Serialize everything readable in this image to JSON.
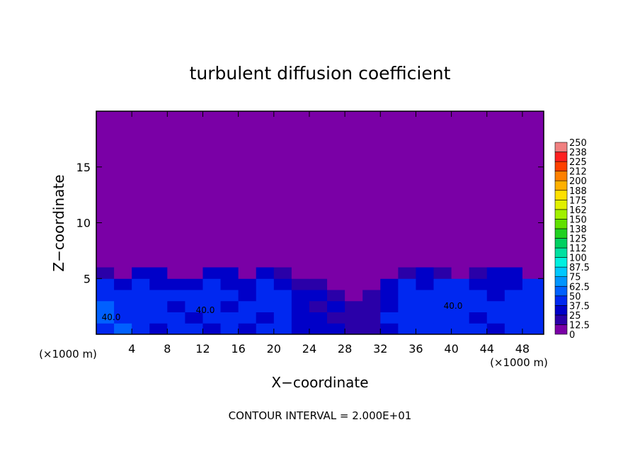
{
  "chart_data": {
    "type": "heatmap",
    "title": "turbulent diffusion coefficient",
    "x_label": "X−coordinate",
    "y_label": "Z−coordinate",
    "x_unit": "(×1000 m)",
    "footer": "CONTOUR INTERVAL = 2.000E+01",
    "annotations": [
      "40.0",
      "40.0",
      "40.0"
    ],
    "xlim": [
      0,
      50.4
    ],
    "ylim": [
      0,
      20
    ],
    "xticks": [
      4,
      8,
      12,
      16,
      20,
      24,
      28,
      32,
      36,
      40,
      44,
      48
    ],
    "yticks": [
      5,
      10,
      15
    ],
    "x_edges": [
      0,
      2,
      4,
      6,
      8,
      10,
      12,
      14,
      16,
      18,
      20,
      22,
      24,
      26,
      28,
      30,
      32,
      34,
      36,
      38,
      40,
      42,
      44,
      46,
      48,
      50.4
    ],
    "y_edges": [
      0,
      1,
      2,
      3,
      4,
      5,
      6
    ],
    "values": [
      [
        45,
        50,
        40,
        35,
        40,
        38,
        35,
        40,
        35,
        38,
        40,
        35,
        30,
        25,
        20,
        20,
        30,
        40,
        45,
        40,
        38,
        40,
        35,
        40,
        45
      ],
      [
        55,
        45,
        40,
        38,
        40,
        35,
        38,
        40,
        40,
        35,
        40,
        30,
        25,
        20,
        18,
        20,
        40,
        45,
        40,
        38,
        40,
        35,
        40,
        42,
        45
      ],
      [
        50,
        40,
        45,
        38,
        35,
        40,
        38,
        35,
        40,
        45,
        38,
        30,
        20,
        25,
        15,
        20,
        35,
        45,
        40,
        38,
        45,
        40,
        38,
        40,
        40
      ],
      [
        45,
        40,
        45,
        40,
        38,
        40,
        42,
        38,
        35,
        45,
        40,
        30,
        25,
        15,
        10,
        15,
        35,
        40,
        45,
        40,
        38,
        40,
        35,
        40,
        45
      ],
      [
        40,
        35,
        40,
        35,
        30,
        35,
        40,
        30,
        25,
        40,
        35,
        20,
        15,
        10,
        5,
        5,
        30,
        40,
        35,
        40,
        40,
        35,
        30,
        35,
        45
      ],
      [
        20,
        5,
        30,
        25,
        10,
        5,
        25,
        30,
        5,
        30,
        20,
        5,
        0,
        0,
        0,
        0,
        5,
        20,
        30,
        15,
        5,
        20,
        30,
        25,
        5
      ]
    ],
    "levels": [
      0,
      12.5,
      25,
      37.5,
      50,
      62.5,
      75,
      87.5,
      100,
      112,
      125,
      138,
      150,
      162,
      175,
      188,
      200,
      212,
      225,
      238,
      250
    ],
    "colors": [
      "#7a00a6",
      "#2a00a8",
      "#0000c8",
      "#0028f0",
      "#0060ff",
      "#0094ff",
      "#00c8ff",
      "#00f0e0",
      "#00e0a0",
      "#00d060",
      "#20d020",
      "#60e000",
      "#a0f000",
      "#e0f000",
      "#ffe000",
      "#ffb000",
      "#ff8000",
      "#ff4000",
      "#ff2020",
      "#f08080"
    ],
    "background_value": 0
  }
}
